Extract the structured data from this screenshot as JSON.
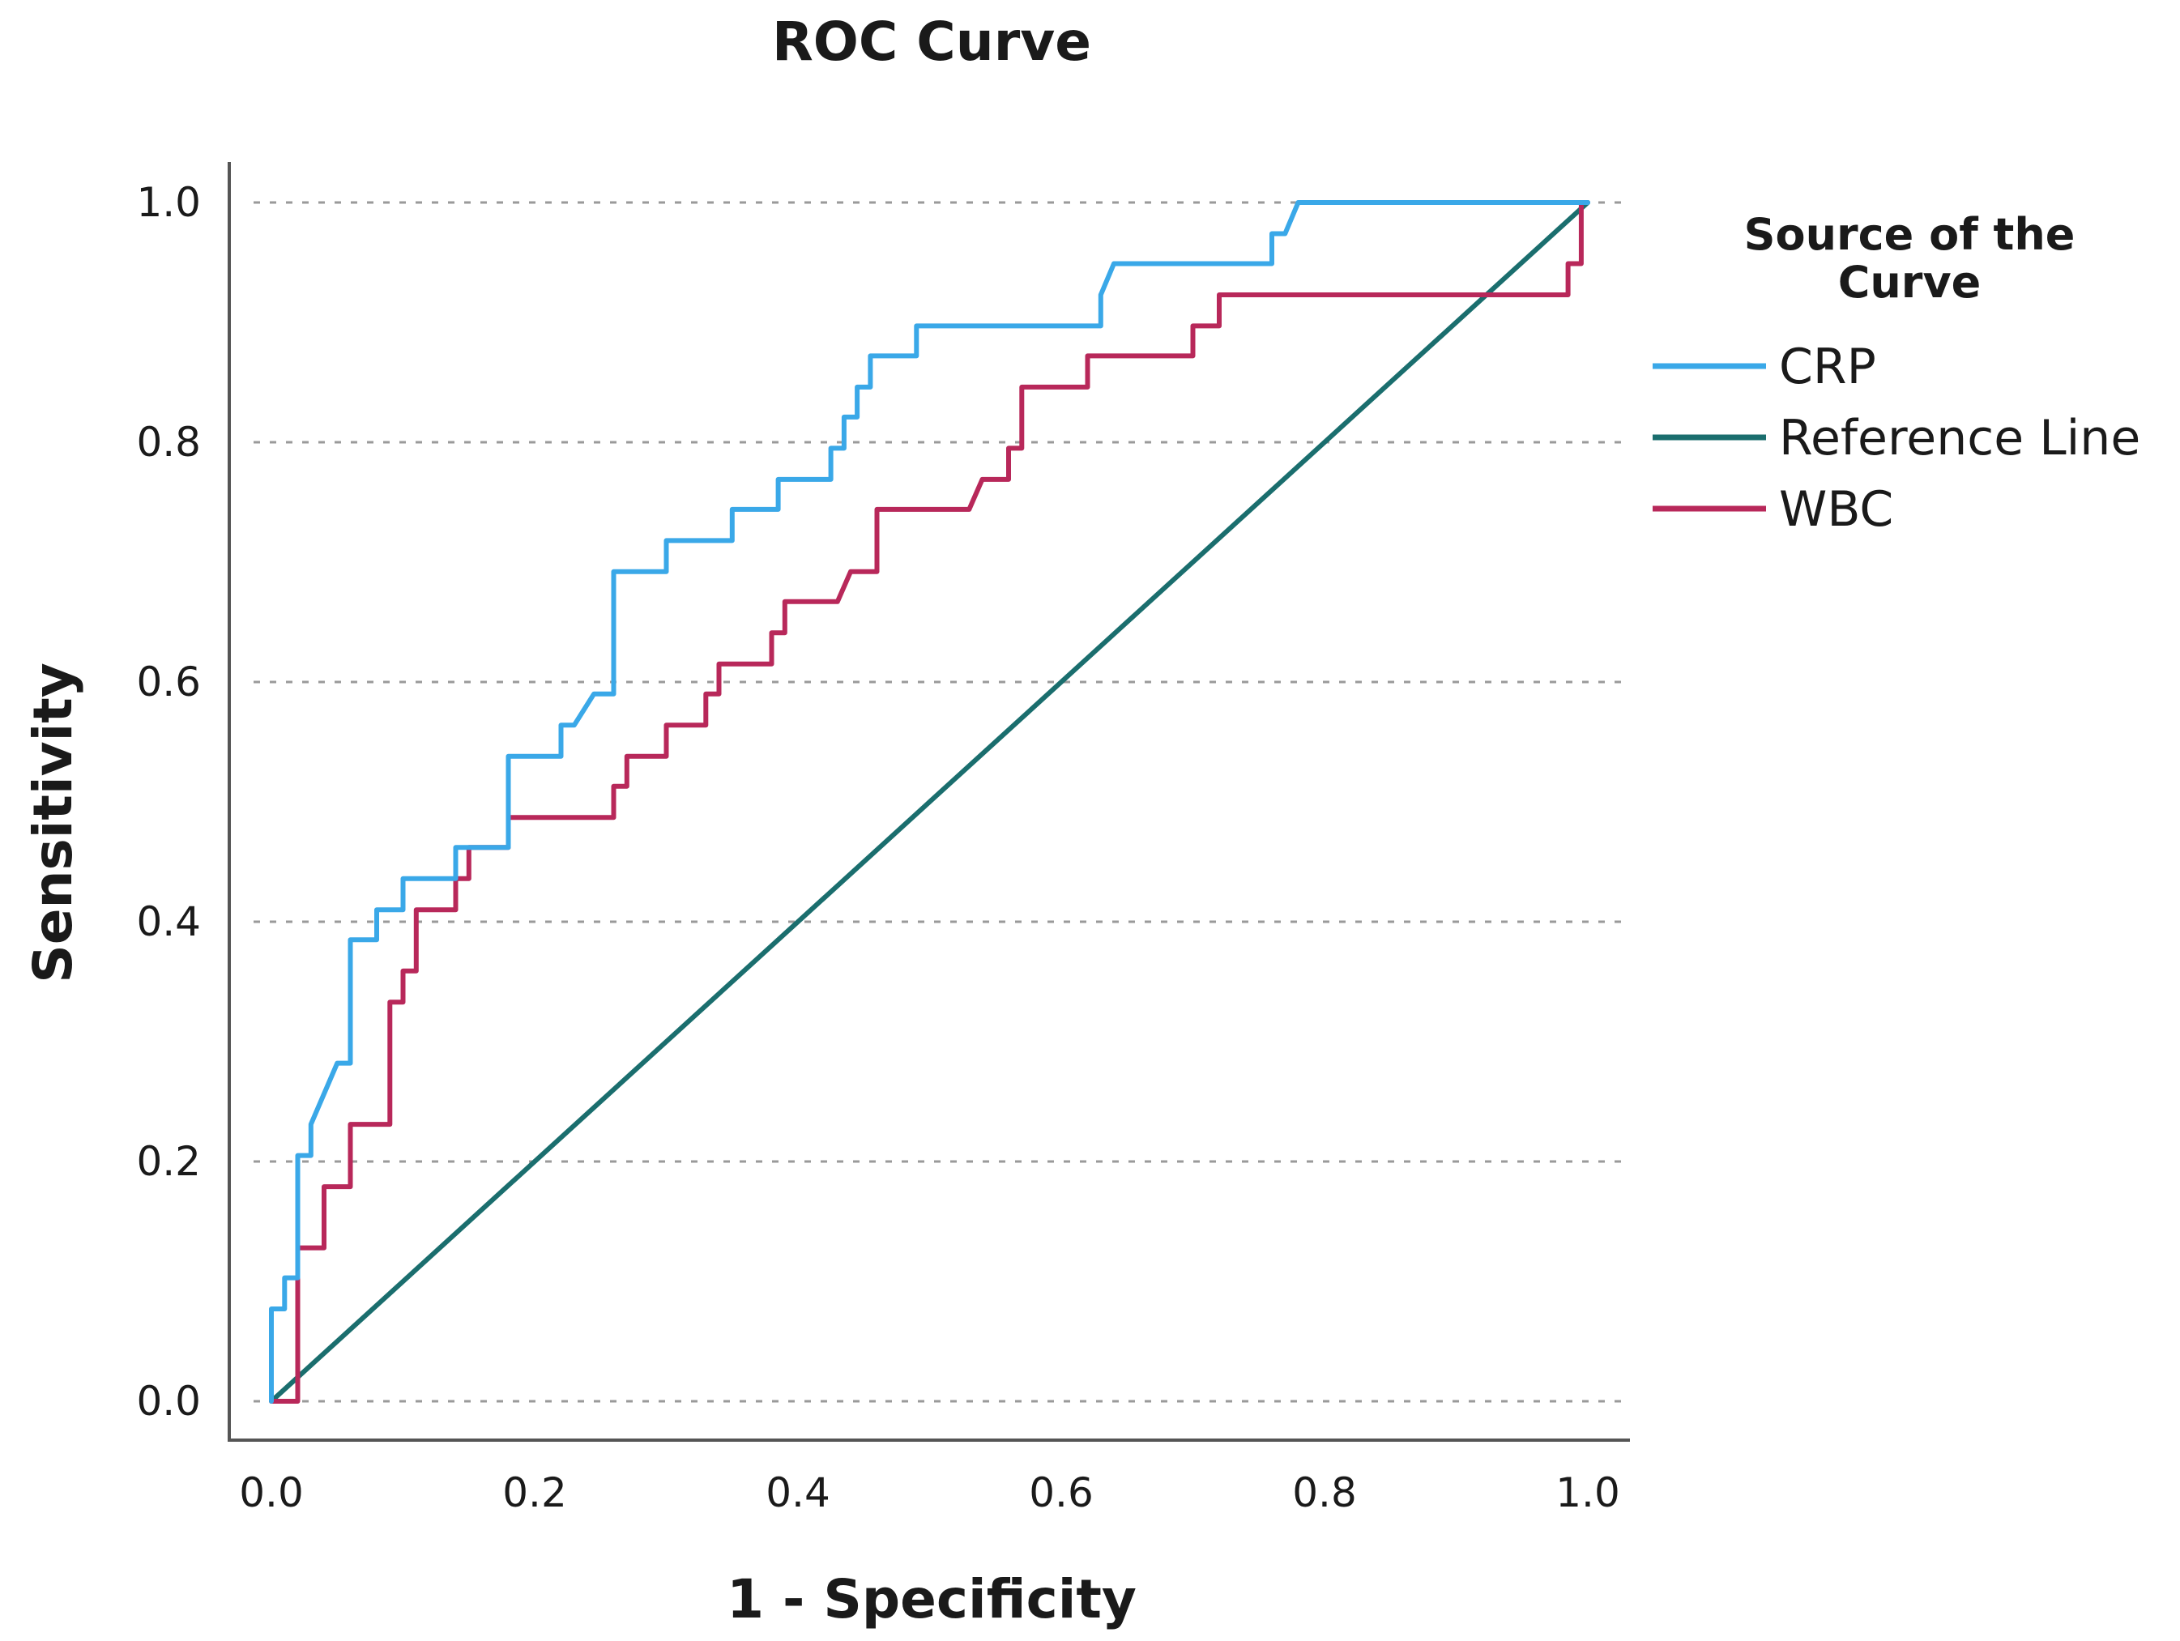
{
  "chart_data": {
    "type": "line",
    "title": "ROC Curve",
    "xlabel": "1 - Specificity",
    "ylabel": "Sensitivity",
    "xlim": [
      0,
      1
    ],
    "ylim": [
      0,
      1
    ],
    "grid": true,
    "legend_position": "right",
    "x_ticks": [
      "0.0",
      "0.2",
      "0.4",
      "0.6",
      "0.8",
      "1.0"
    ],
    "y_ticks": [
      "0.0",
      "0.2",
      "0.4",
      "0.6",
      "0.8",
      "1.0"
    ],
    "legend_title": [
      "Source of the",
      "Curve"
    ],
    "series": [
      {
        "name": "CRP",
        "color": "#3aa8e8",
        "points": [
          [
            0.0,
            0.0
          ],
          [
            0.0,
            0.077
          ],
          [
            0.01,
            0.077
          ],
          [
            0.01,
            0.103
          ],
          [
            0.02,
            0.103
          ],
          [
            0.02,
            0.205
          ],
          [
            0.03,
            0.205
          ],
          [
            0.03,
            0.231
          ],
          [
            0.05,
            0.282
          ],
          [
            0.06,
            0.282
          ],
          [
            0.06,
            0.385
          ],
          [
            0.08,
            0.385
          ],
          [
            0.08,
            0.41
          ],
          [
            0.1,
            0.41
          ],
          [
            0.1,
            0.436
          ],
          [
            0.14,
            0.436
          ],
          [
            0.14,
            0.462
          ],
          [
            0.18,
            0.462
          ],
          [
            0.18,
            0.538
          ],
          [
            0.22,
            0.538
          ],
          [
            0.22,
            0.564
          ],
          [
            0.23,
            0.564
          ],
          [
            0.245,
            0.59
          ],
          [
            0.26,
            0.59
          ],
          [
            0.26,
            0.692
          ],
          [
            0.3,
            0.692
          ],
          [
            0.3,
            0.718
          ],
          [
            0.35,
            0.718
          ],
          [
            0.35,
            0.744
          ],
          [
            0.385,
            0.744
          ],
          [
            0.385,
            0.769
          ],
          [
            0.425,
            0.769
          ],
          [
            0.425,
            0.795
          ],
          [
            0.435,
            0.795
          ],
          [
            0.435,
            0.821
          ],
          [
            0.445,
            0.821
          ],
          [
            0.445,
            0.846
          ],
          [
            0.455,
            0.846
          ],
          [
            0.455,
            0.872
          ],
          [
            0.49,
            0.872
          ],
          [
            0.49,
            0.897
          ],
          [
            0.63,
            0.897
          ],
          [
            0.63,
            0.923
          ],
          [
            0.64,
            0.949
          ],
          [
            0.76,
            0.949
          ],
          [
            0.76,
            0.974
          ],
          [
            0.77,
            0.974
          ],
          [
            0.78,
            1.0
          ],
          [
            1.0,
            1.0
          ]
        ]
      },
      {
        "name": "Reference Line",
        "color": "#1a6e6e",
        "points": [
          [
            0,
            0
          ],
          [
            1,
            1
          ]
        ]
      },
      {
        "name": "WBC",
        "color": "#b8285a",
        "points": [
          [
            0.0,
            0.0
          ],
          [
            0.02,
            0.0
          ],
          [
            0.02,
            0.128
          ],
          [
            0.04,
            0.128
          ],
          [
            0.04,
            0.179
          ],
          [
            0.06,
            0.179
          ],
          [
            0.06,
            0.231
          ],
          [
            0.09,
            0.231
          ],
          [
            0.09,
            0.333
          ],
          [
            0.1,
            0.333
          ],
          [
            0.1,
            0.359
          ],
          [
            0.11,
            0.359
          ],
          [
            0.11,
            0.41
          ],
          [
            0.14,
            0.41
          ],
          [
            0.14,
            0.436
          ],
          [
            0.15,
            0.436
          ],
          [
            0.15,
            0.462
          ],
          [
            0.18,
            0.462
          ],
          [
            0.18,
            0.487
          ],
          [
            0.26,
            0.487
          ],
          [
            0.26,
            0.513
          ],
          [
            0.27,
            0.513
          ],
          [
            0.27,
            0.538
          ],
          [
            0.3,
            0.538
          ],
          [
            0.3,
            0.564
          ],
          [
            0.33,
            0.564
          ],
          [
            0.33,
            0.59
          ],
          [
            0.34,
            0.59
          ],
          [
            0.34,
            0.615
          ],
          [
            0.38,
            0.615
          ],
          [
            0.38,
            0.641
          ],
          [
            0.39,
            0.641
          ],
          [
            0.39,
            0.667
          ],
          [
            0.43,
            0.667
          ],
          [
            0.44,
            0.692
          ],
          [
            0.46,
            0.692
          ],
          [
            0.46,
            0.744
          ],
          [
            0.53,
            0.744
          ],
          [
            0.54,
            0.769
          ],
          [
            0.56,
            0.769
          ],
          [
            0.56,
            0.795
          ],
          [
            0.57,
            0.795
          ],
          [
            0.57,
            0.846
          ],
          [
            0.62,
            0.846
          ],
          [
            0.62,
            0.872
          ],
          [
            0.7,
            0.872
          ],
          [
            0.7,
            0.897
          ],
          [
            0.72,
            0.897
          ],
          [
            0.72,
            0.923
          ],
          [
            0.985,
            0.923
          ],
          [
            0.985,
            0.949
          ],
          [
            0.995,
            0.949
          ],
          [
            0.995,
            1.0
          ]
        ]
      }
    ]
  }
}
